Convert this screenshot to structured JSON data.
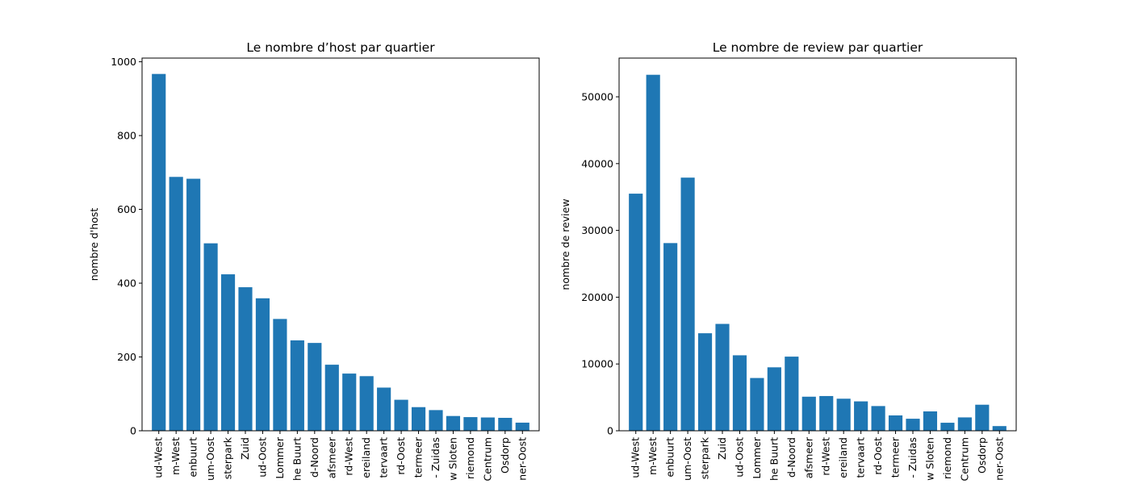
{
  "chart_data": [
    {
      "type": "bar",
      "title": "Le nombre d’host par quartier",
      "xlabel": "",
      "ylabel": "nombre d'host",
      "ylim": [
        0,
        1010
      ],
      "yticks": [
        0,
        200,
        400,
        600,
        800,
        1000
      ],
      "categories": [
        "ud-West",
        "m-West",
        "enbuurt",
        "um-Oost",
        "sterpark",
        "Zuid",
        "ud-Oost",
        "Lommer",
        "he Buurt",
        "d-Noord",
        "afsmeer",
        "rd-West",
        "ereiland",
        "tervaart",
        "rd-Oost",
        "termeer",
        "- Zuidas",
        "w Sloten",
        "riemond",
        "Centrum",
        "Osdorp",
        "ner-Oost"
      ],
      "values": [
        967,
        688,
        683,
        508,
        424,
        389,
        359,
        303,
        245,
        238,
        179,
        155,
        148,
        117,
        84,
        64,
        56,
        40,
        37,
        36,
        35,
        22
      ],
      "color": "#1f77b4",
      "grid": false
    },
    {
      "type": "bar",
      "title": "Le nombre de review par quartier",
      "xlabel": "",
      "ylabel": "nombre de review",
      "ylim": [
        0,
        55800
      ],
      "yticks": [
        0,
        10000,
        20000,
        30000,
        40000,
        50000
      ],
      "categories": [
        "ud-West",
        "m-West",
        "enbuurt",
        "um-Oost",
        "sterpark",
        "Zuid",
        "ud-Oost",
        "Lommer",
        "he Buurt",
        "d-Noord",
        "afsmeer",
        "rd-West",
        "ereiland",
        "tervaart",
        "rd-Oost",
        "termeer",
        "- Zuidas",
        "w Sloten",
        "riemond",
        "Centrum",
        "Osdorp",
        "ner-Oost"
      ],
      "values": [
        35500,
        53300,
        28100,
        37900,
        14600,
        16000,
        11300,
        7900,
        9500,
        11100,
        5100,
        5200,
        4800,
        4400,
        3700,
        2300,
        1800,
        2900,
        1200,
        2000,
        3900,
        700
      ],
      "color": "#1f77b4",
      "grid": false
    }
  ]
}
